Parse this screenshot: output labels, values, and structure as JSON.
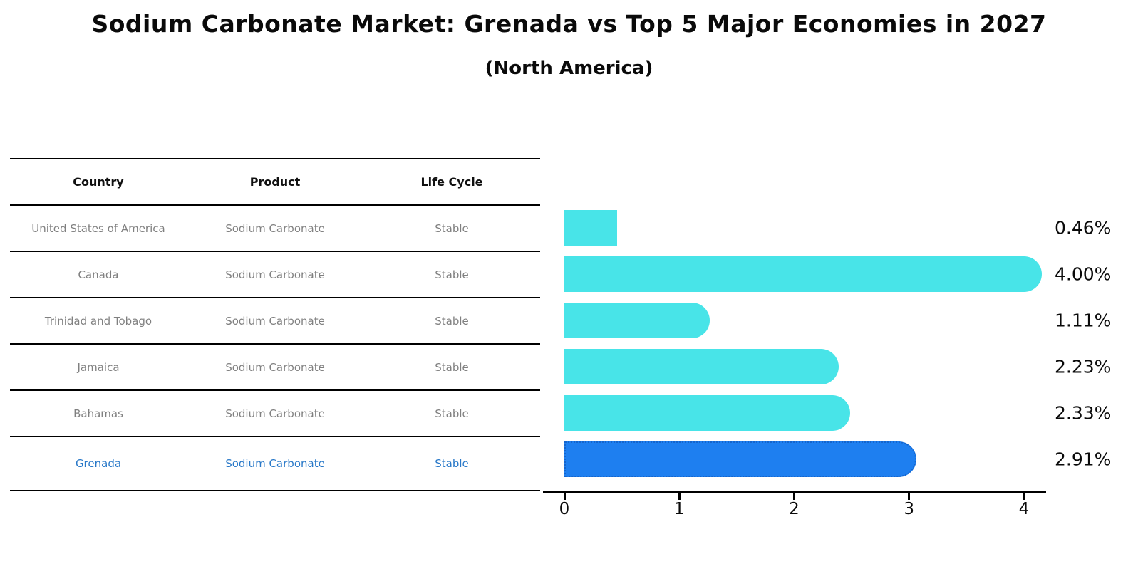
{
  "title": "Sodium Carbonate Market: Grenada vs Top 5 Major Economies in 2027",
  "subtitle": "(North America)",
  "table": {
    "headers": [
      "Country",
      "Product",
      "Life Cycle"
    ],
    "rows": [
      {
        "country": "United States of America",
        "product": "Sodium Carbonate",
        "life_cycle": "Stable",
        "highlight": false
      },
      {
        "country": "Canada",
        "product": "Sodium Carbonate",
        "life_cycle": "Stable",
        "highlight": false
      },
      {
        "country": "Trinidad and Tobago",
        "product": "Sodium Carbonate",
        "life_cycle": "Stable",
        "highlight": false
      },
      {
        "country": "Jamaica",
        "product": "Sodium Carbonate",
        "life_cycle": "Stable",
        "highlight": false
      },
      {
        "country": "Bahamas",
        "product": "Sodium Carbonate",
        "life_cycle": "Stable",
        "highlight": false
      },
      {
        "country": "Grenada",
        "product": "Sodium Carbonate",
        "life_cycle": "Stable",
        "highlight": true
      }
    ]
  },
  "chart_data": {
    "type": "bar",
    "orientation": "horizontal",
    "title": "Sodium Carbonate Market: Grenada vs Top 5 Major Economies in 2027",
    "subtitle": "(North America)",
    "categories": [
      "United States of America",
      "Canada",
      "Trinidad and Tobago",
      "Jamaica",
      "Bahamas",
      "Grenada"
    ],
    "values": [
      0.46,
      4.0,
      1.11,
      2.23,
      2.33,
      2.91
    ],
    "labels": [
      "0.46%",
      "4.00%",
      "1.11%",
      "2.23%",
      "2.33%",
      "2.91%"
    ],
    "x_ticks": [
      0,
      1,
      2,
      3,
      4
    ],
    "xlim": [
      0,
      4.2
    ],
    "grid": false,
    "legend": false,
    "value_label_position": "right-outside",
    "highlight_index": 5,
    "bar_color": "#48E4E8",
    "highlight_color": "#1E7FF0",
    "highlight_border_color": "#1565CC"
  },
  "colors": {
    "background": "#FFFFFF",
    "table_line": "#000000",
    "header_text": "#111111",
    "row_text": "#808080",
    "highlight_text": "#2878C8",
    "axis": "#000000"
  }
}
